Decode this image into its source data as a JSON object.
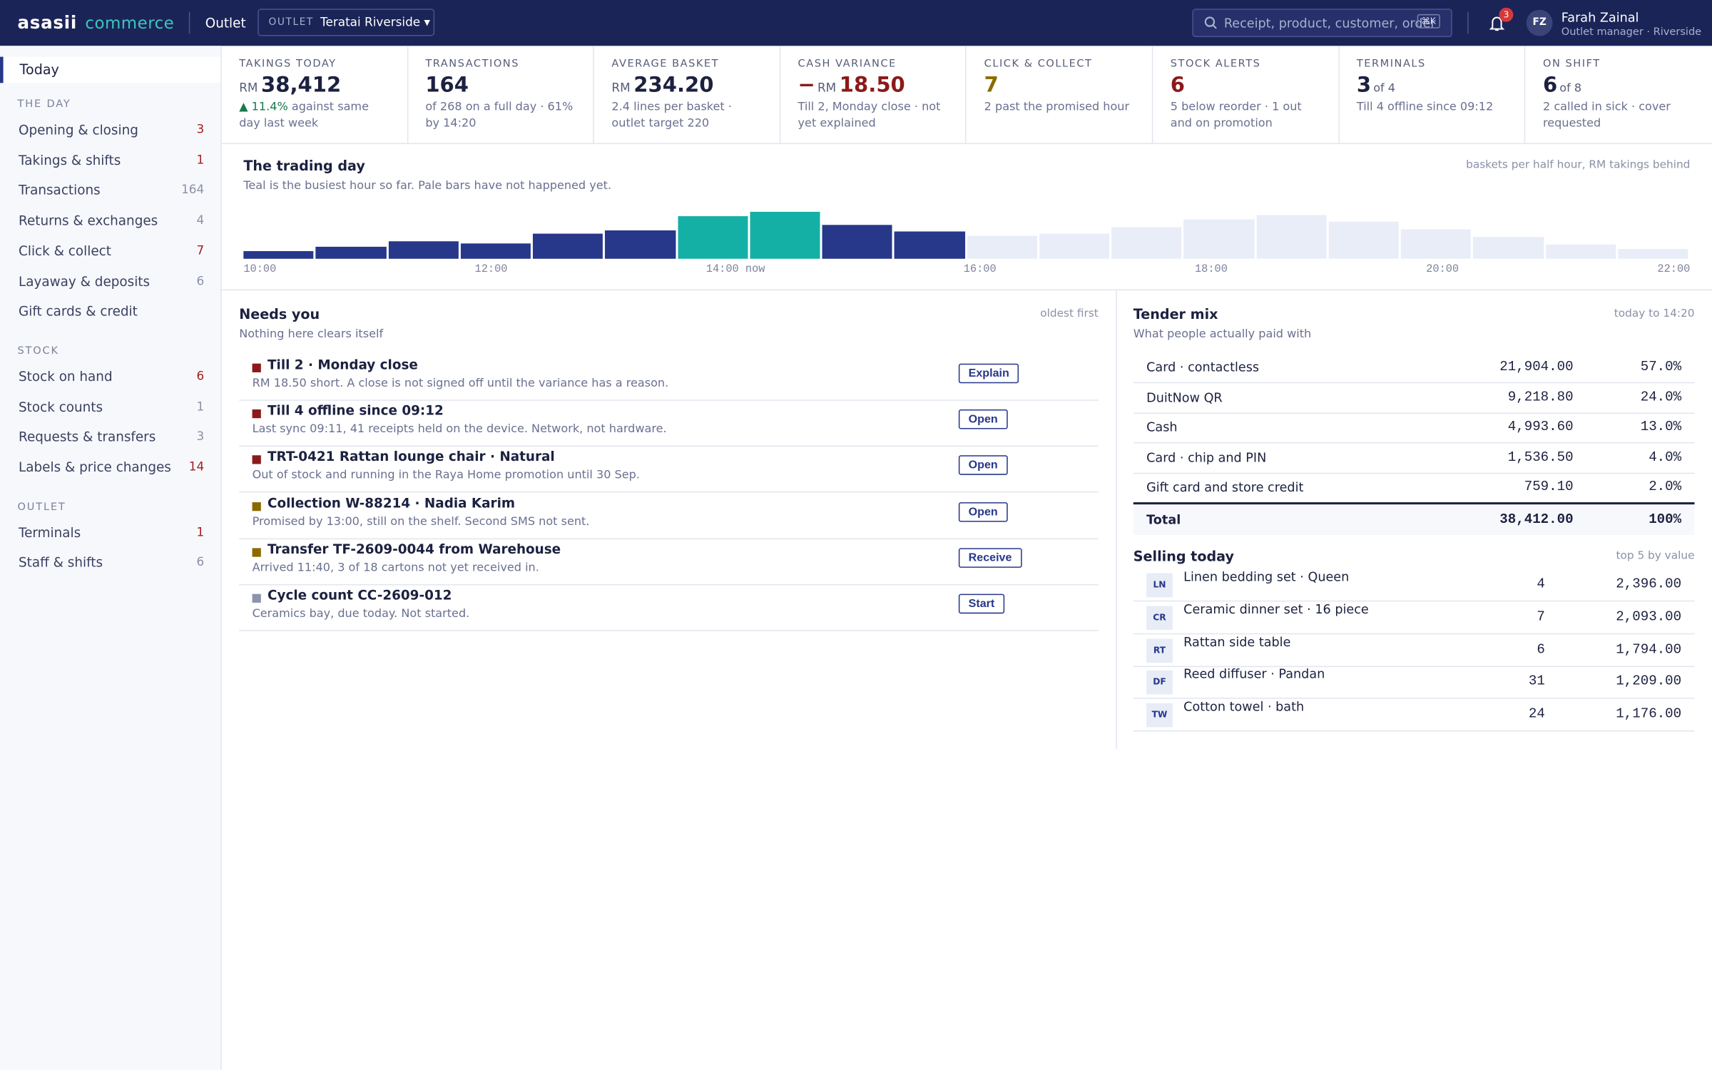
{
  "header": {
    "brand": "asasii",
    "brand_suffix": "commerce",
    "section": "Outlet",
    "outlet_label": "OUTLET",
    "outlet_name": "Teratai Riverside ▾",
    "search_placeholder": "Receipt, product, customer, order",
    "search_shortcut": "⌘K",
    "notification_count": "3",
    "user_initials": "FZ",
    "user_name": "Farah Zainal",
    "user_role": "Outlet manager · Riverside"
  },
  "sidebar": {
    "active": "Today",
    "sections": [
      {
        "title": "THE DAY",
        "items": [
          {
            "label": "Opening & closing",
            "count": "3",
            "count_color": "#a31e1e"
          },
          {
            "label": "Takings & shifts",
            "count": "1",
            "count_color": "#a31e1e"
          },
          {
            "label": "Transactions",
            "count": "164",
            "count_color": "#8b90a6"
          },
          {
            "label": "Returns & exchanges",
            "count": "4",
            "count_color": "#8b90a6"
          },
          {
            "label": "Click & collect",
            "count": "7",
            "count_color": "#a31e1e"
          },
          {
            "label": "Layaway & deposits",
            "count": "6",
            "count_color": "#8b90a6"
          },
          {
            "label": "Gift cards & credit"
          }
        ]
      },
      {
        "title": "STOCK",
        "items": [
          {
            "label": "Stock on hand",
            "count": "6",
            "count_color": "#a31e1e"
          },
          {
            "label": "Stock counts",
            "count": "1",
            "count_color": "#8b90a6"
          },
          {
            "label": "Requests & transfers",
            "count": "3",
            "count_color": "#8b90a6"
          },
          {
            "label": "Labels & price changes",
            "count": "14",
            "count_color": "#a31e1e"
          }
        ]
      },
      {
        "title": "OUTLET",
        "items": [
          {
            "label": "Terminals",
            "count": "1",
            "count_color": "#a31e1e"
          },
          {
            "label": "Staff & shifts",
            "count": "6",
            "count_color": "#8b90a6"
          }
        ]
      }
    ]
  },
  "kpis": [
    {
      "label": "TAKINGS TODAY",
      "prefix": "RM",
      "value": "38,412",
      "delta": "▲ 11.4%",
      "note": "against same day last week"
    },
    {
      "label": "TRANSACTIONS",
      "value": "164",
      "note": "of 268 on a full day · 61% by 14:20"
    },
    {
      "label": "AVERAGE BASKET",
      "prefix": "RM",
      "value": "234.20",
      "note": "2.4 lines per basket · outlet target 220"
    },
    {
      "label": "CASH VARIANCE",
      "sign": "−",
      "prefix": "RM",
      "value": "18.50",
      "value_color": "#8b1a1a",
      "note": "Till 2, Monday close · not yet explained"
    },
    {
      "label": "CLICK & COLLECT",
      "value": "7",
      "value_color": "#8a6d00",
      "note": "2 past the promised hour"
    },
    {
      "label": "STOCK ALERTS",
      "value": "6",
      "value_color": "#8b1a1a",
      "note": "5 below reorder · 1 out and on promotion"
    },
    {
      "label": "TERMINALS",
      "value": "3",
      "suffix": "of 4",
      "note": "Till 4 offline since 09:12"
    },
    {
      "label": "ON SHIFT",
      "value": "6",
      "suffix": "of 8",
      "note": "2 called in sick · cover requested"
    }
  ],
  "trading_day": {
    "title": "The trading day",
    "subtitle": "Teal is the busiest hour so far. Pale bars have not happened yet.",
    "legend_note": "baskets per half hour, RM takings behind",
    "chart": {
      "type": "bar",
      "ylim": [
        0,
        45
      ],
      "values": [
        7,
        11,
        16,
        14,
        23,
        26,
        39,
        43,
        31,
        25,
        21,
        23,
        29,
        36,
        40,
        34,
        27,
        20,
        13,
        9
      ],
      "colors": [
        "#27378a",
        "#27378a",
        "#27378a",
        "#27378a",
        "#27378a",
        "#27378a",
        "#14b0a5",
        "#14b0a5",
        "#27378a",
        "#27378a",
        "#e9edf8",
        "#e9edf8",
        "#e9edf8",
        "#e9edf8",
        "#e9edf8",
        "#e9edf8",
        "#e9edf8",
        "#e9edf8",
        "#e9edf8",
        "#e9edf8"
      ]
    },
    "x_labels": [
      "10:00",
      "12:00",
      "14:00 now",
      "16:00",
      "18:00",
      "20:00",
      "22:00"
    ]
  },
  "needs_you": {
    "title": "Needs you",
    "subtitle": "Nothing here clears itself",
    "sort": "oldest first",
    "items": [
      {
        "color": "#8b1a1a",
        "title": "Till 2 · Monday close",
        "detail": "RM 18.50 short. A close is not signed off until the variance has a reason.",
        "action": "Explain"
      },
      {
        "color": "#8b1a1a",
        "title": "Till 4 offline since 09:12",
        "detail": "Last sync 09:11, 41 receipts held on the device. Network, not hardware.",
        "action": "Open"
      },
      {
        "color": "#8b1a1a",
        "title": "TRT-0421 Rattan lounge chair · Natural",
        "detail": "Out of stock and running in the Raya Home promotion until 30 Sep.",
        "action": "Open"
      },
      {
        "color": "#8a6a00",
        "title": "Collection W-88214 · Nadia Karim",
        "detail": "Promised by 13:00, still on the shelf. Second SMS not sent.",
        "action": "Open"
      },
      {
        "color": "#8a6a00",
        "title": "Transfer TF-2609-0044 from Warehouse",
        "detail": "Arrived 11:40, 3 of 18 cartons not yet received in.",
        "action": "Receive"
      },
      {
        "color": "#8d93ae",
        "title": "Cycle count CC-2609-012",
        "detail": "Ceramics bay, due today. Not started.",
        "action": "Start"
      }
    ]
  },
  "tender_mix": {
    "title": "Tender mix",
    "subtitle": "What people actually paid with",
    "period": "today to 14:20",
    "rows": [
      {
        "name": "Card · contactless",
        "amount": "21,904.00",
        "share": "57.0%"
      },
      {
        "name": "DuitNow QR",
        "amount": "9,218.80",
        "share": "24.0%"
      },
      {
        "name": "Cash",
        "amount": "4,993.60",
        "share": "13.0%"
      },
      {
        "name": "Card · chip and PIN",
        "amount": "1,536.50",
        "share": "4.0%"
      },
      {
        "name": "Gift card and store credit",
        "amount": "759.10",
        "share": "2.0%"
      }
    ],
    "total": {
      "name": "Total",
      "amount": "38,412.00",
      "share": "100%"
    }
  },
  "selling_today": {
    "title": "Selling today",
    "note": "top 5 by value",
    "items": [
      {
        "code": "LN",
        "name": "Linen bedding set · Queen",
        "qty": 4,
        "value": "2,396.00"
      },
      {
        "code": "CR",
        "name": "Ceramic dinner set · 16 piece",
        "qty": 7,
        "value": "2,093.00"
      },
      {
        "code": "RT",
        "name": "Rattan side table",
        "qty": 6,
        "value": "1,794.00"
      },
      {
        "code": "DF",
        "name": "Reed diffuser · Pandan",
        "qty": 31,
        "value": "1,209.00"
      },
      {
        "code": "TW",
        "name": "Cotton towel · bath",
        "qty": 24,
        "value": "1,176.00"
      }
    ]
  }
}
